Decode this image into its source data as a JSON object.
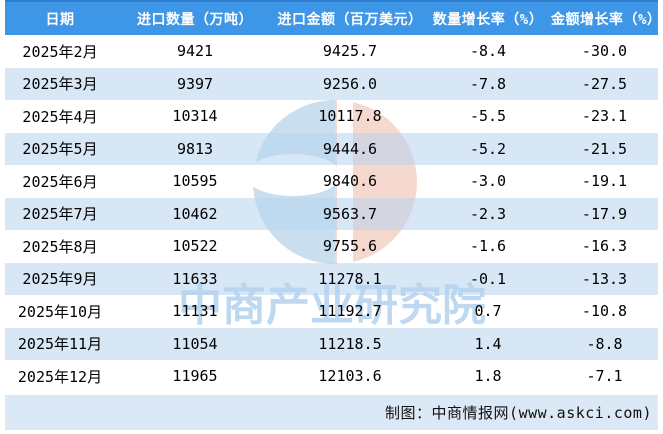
{
  "chart_data": {
    "type": "table",
    "columns": [
      "日期",
      "进口数量（万吨）",
      "进口金额（百万美元）",
      "数量增长率（%）",
      "金额增长率（%）"
    ],
    "rows": [
      [
        "2025年2月",
        "9421",
        "9425.7",
        "-8.4",
        "-30.0"
      ],
      [
        "2025年3月",
        "9397",
        "9256.0",
        "-7.8",
        "-27.5"
      ],
      [
        "2025年4月",
        "10314",
        "10117.8",
        "-5.5",
        "-23.1"
      ],
      [
        "2025年5月",
        "9813",
        "9444.6",
        "-5.2",
        "-21.5"
      ],
      [
        "2025年6月",
        "10595",
        "9840.6",
        "-3.0",
        "-19.1"
      ],
      [
        "2025年7月",
        "10462",
        "9563.7",
        "-2.3",
        "-17.9"
      ],
      [
        "2025年8月",
        "10522",
        "9755.6",
        "-1.6",
        "-16.3"
      ],
      [
        "2025年9月",
        "11633",
        "11278.1",
        "-0.1",
        "-13.3"
      ],
      [
        "2025年10月",
        "11131",
        "11192.7",
        "0.7",
        "-10.8"
      ],
      [
        "2025年11月",
        "11054",
        "11218.5",
        "1.4",
        "-8.8"
      ],
      [
        "2025年12月",
        "11965",
        "12103.6",
        "1.8",
        "-7.1"
      ]
    ]
  },
  "watermark": {
    "text": "中商产业研究院",
    "logo": "csic-logo"
  },
  "footer": {
    "credit": "制图：中商情报网(www.askci.com)"
  },
  "colors": {
    "header_bg": "#3E96E6",
    "header_text": "#FFFFFF",
    "row_alt_bg": "rgba(183,211,239,0.55)",
    "footer_bg": "#DBE9F7",
    "body_text": "#000000",
    "watermark_blue": "#C9DFF0",
    "watermark_red": "#F5D9CE",
    "watermark_text": "#BDD8F0"
  }
}
